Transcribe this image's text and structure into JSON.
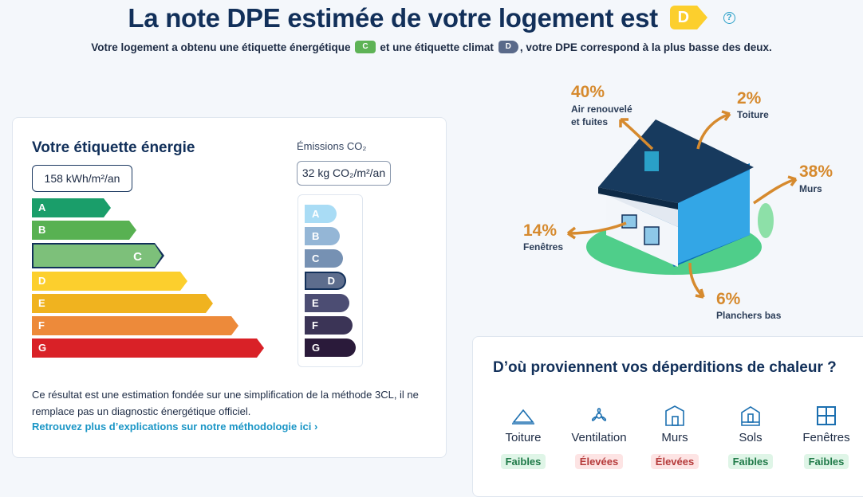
{
  "header": {
    "title": "La note DPE estimée de votre logement est",
    "grade": "D",
    "help": "?",
    "subtitle_part1": "Votre logement a obtenu une étiquette énergétique",
    "energy_grade": "C",
    "subtitle_part2": "et une étiquette climat",
    "climate_grade": "D",
    "subtitle_part3": ", votre DPE correspond à la plus basse des deux."
  },
  "energy_card": {
    "title": "Votre étiquette énergie",
    "value": "158 kWh/m²/an",
    "co2_label": "Émissions CO₂",
    "co2_value": "32 kg CO₂/m²/an",
    "energy_scale": [
      {
        "label": "A",
        "color": "#1a9e6a"
      },
      {
        "label": "B",
        "color": "#58b152"
      },
      {
        "label": "C",
        "color": "#7dc07a",
        "selected": true
      },
      {
        "label": "D",
        "color": "#fccf2d"
      },
      {
        "label": "E",
        "color": "#f0b31f"
      },
      {
        "label": "F",
        "color": "#ed8a3a"
      },
      {
        "label": "G",
        "color": "#d92127"
      }
    ],
    "co2_scale": [
      {
        "label": "A",
        "color": "#a9dcf5"
      },
      {
        "label": "B",
        "color": "#94b6d6"
      },
      {
        "label": "C",
        "color": "#7691b3"
      },
      {
        "label": "D",
        "color": "#5d6d8d",
        "selected": true
      },
      {
        "label": "E",
        "color": "#4c4d73"
      },
      {
        "label": "F",
        "color": "#3b3456"
      },
      {
        "label": "G",
        "color": "#2a1a3a"
      }
    ],
    "disclaimer": "Ce résultat est une estimation fondée sur une simplification de la méthode 3CL, il ne remplace pas un diagnostic énergétique officiel.",
    "link": "Retrouvez plus d’explications sur notre méthodologie ici ›"
  },
  "house": {
    "air": {
      "pct": "40%",
      "label1": "Air renouvelé",
      "label2": "et fuites"
    },
    "roof": {
      "pct": "2%",
      "label": "Toiture"
    },
    "walls": {
      "pct": "38%",
      "label": "Murs"
    },
    "windows": {
      "pct": "14%",
      "label": "Fenêtres"
    },
    "floors": {
      "pct": "6%",
      "label": "Planchers bas"
    }
  },
  "losses": {
    "title": "D’où proviennent vos déperditions de chaleur ?",
    "items": [
      {
        "name": "Toiture",
        "level": "Faibles",
        "icon": "roof-icon"
      },
      {
        "name": "Ventilation",
        "level": "Élevées",
        "icon": "ventilation-icon"
      },
      {
        "name": "Murs",
        "level": "Élevées",
        "icon": "walls-icon"
      },
      {
        "name": "Sols",
        "level": "Faibles",
        "icon": "floor-icon"
      },
      {
        "name": "Fenêtres",
        "level": "Faibles",
        "icon": "window-icon"
      }
    ]
  }
}
